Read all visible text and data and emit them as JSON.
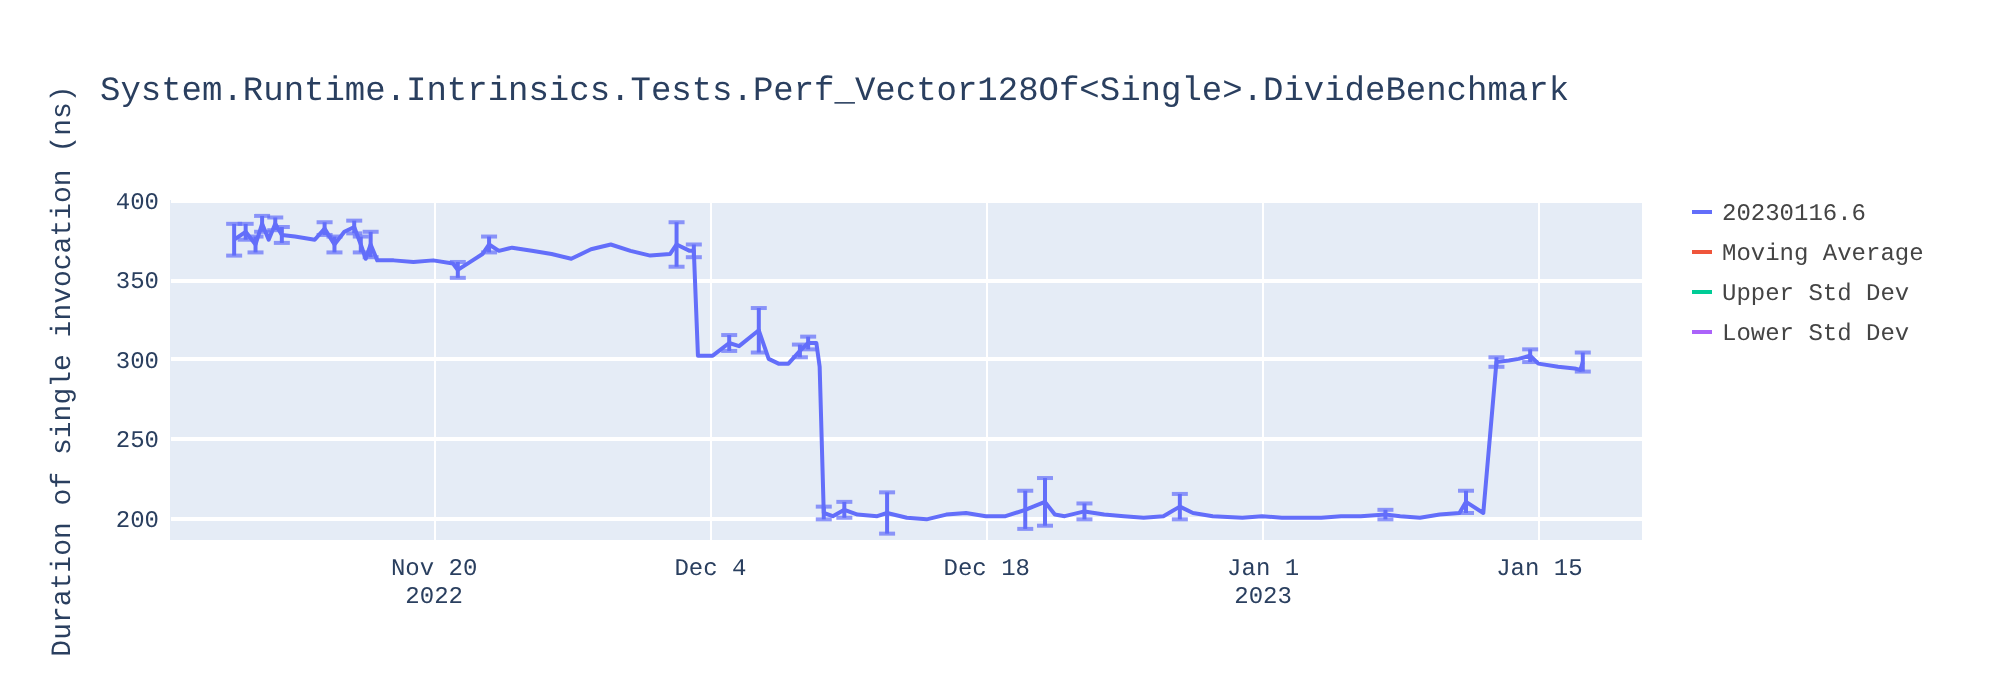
{
  "chart_data": {
    "type": "line",
    "title": "System.Runtime.Intrinsics.Tests.Perf_Vector128Of<Single>.DivideBenchmark",
    "ylabel": "Duration of single invocation (ns)",
    "x": [
      "2022-11-09T22:00",
      "2022-11-10T12:00",
      "2022-11-11T00:00",
      "2022-11-11T08:00",
      "2022-11-11T16:00",
      "2022-11-12T00:00",
      "2022-11-12T08:00",
      "2022-11-13T00:00",
      "2022-11-14T00:00",
      "2022-11-14T12:00",
      "2022-11-15T00:00",
      "2022-11-15T12:00",
      "2022-11-16T00:00",
      "2022-11-16T08:00",
      "2022-11-16T14:00",
      "2022-11-16T20:00",
      "2022-11-17T04:00",
      "2022-11-18T00:00",
      "2022-11-19T00:00",
      "2022-11-20T00:00",
      "2022-11-21T00:00",
      "2022-11-21T06:00",
      "2022-11-22T00:00",
      "2022-11-22T12:00",
      "2022-11-22T20:00",
      "2022-11-23T08:00",
      "2022-11-24T00:00",
      "2022-11-25T00:00",
      "2022-11-26T00:00",
      "2022-11-27T00:00",
      "2022-11-28T00:00",
      "2022-11-29T00:00",
      "2022-11-30T00:00",
      "2022-12-01T00:00",
      "2022-12-02T00:00",
      "2022-12-02T08:00",
      "2022-12-03T00:00",
      "2022-12-03T05:00",
      "2022-12-03T10:00",
      "2022-12-04T04:00",
      "2022-12-05T00:00",
      "2022-12-05T12:00",
      "2022-12-06T12:00",
      "2022-12-07T00:00",
      "2022-12-07T12:00",
      "2022-12-08T00:00",
      "2022-12-08T14:00",
      "2022-12-09T00:00",
      "2022-12-09T10:00",
      "2022-12-09T14:00",
      "2022-12-09T19:00",
      "2022-12-10T06:00",
      "2022-12-10T20:00",
      "2022-12-11T12:00",
      "2022-12-12T12:00",
      "2022-12-13T00:00",
      "2022-12-14T00:00",
      "2022-12-15T00:00",
      "2022-12-16T00:00",
      "2022-12-17T00:00",
      "2022-12-18T00:00",
      "2022-12-19T00:00",
      "2022-12-20T00:00",
      "2022-12-21T00:00",
      "2022-12-21T12:00",
      "2022-12-22T00:00",
      "2022-12-23T00:00",
      "2022-12-24T00:00",
      "2022-12-25T00:00",
      "2022-12-26T00:00",
      "2022-12-27T00:00",
      "2022-12-27T20:00",
      "2022-12-28T12:00",
      "2022-12-29T12:00",
      "2022-12-31T00:00",
      "2023-01-01T00:00",
      "2023-01-02T00:00",
      "2023-01-03T00:00",
      "2023-01-04T00:00",
      "2023-01-05T00:00",
      "2023-01-06T00:00",
      "2023-01-07T06:00",
      "2023-01-08T00:00",
      "2023-01-09T00:00",
      "2023-01-10T00:00",
      "2023-01-11T00:00",
      "2023-01-11T08:00",
      "2023-01-12T05:00",
      "2023-01-12T21:00",
      "2023-01-13T12:00",
      "2023-01-14T00:00",
      "2023-01-14T14:00",
      "2023-01-15T00:00",
      "2023-01-16T00:00",
      "2023-01-16T20:00",
      "2023-01-17T03:00",
      "2023-01-17T06:00"
    ],
    "series": [
      {
        "name": "20230116.6",
        "color": "#636efa",
        "values": [
          375,
          380,
          372,
          385,
          375,
          385,
          378,
          377,
          375,
          382,
          372,
          380,
          383,
          372,
          363,
          372,
          362,
          362,
          361,
          362,
          360,
          356,
          362,
          366,
          372,
          368,
          370,
          368,
          366,
          363,
          369,
          372,
          368,
          365,
          366,
          372,
          368,
          368,
          302,
          302,
          310,
          308,
          318,
          300,
          297,
          297,
          305,
          310,
          310,
          295,
          203,
          201,
          205,
          202,
          201,
          203,
          200,
          199,
          202,
          203,
          201,
          201,
          205,
          210,
          202,
          201,
          204,
          202,
          201,
          200,
          201,
          207,
          203,
          201,
          200,
          201,
          200,
          200,
          200,
          201,
          201,
          202,
          201,
          200,
          202,
          203,
          210,
          203,
          298,
          299,
          300,
          302,
          297,
          295,
          294,
          293,
          298
        ],
        "errors": [
          10,
          5,
          5,
          5,
          null,
          4,
          5,
          null,
          null,
          4,
          5,
          null,
          4,
          5,
          null,
          8,
          null,
          null,
          null,
          null,
          null,
          5,
          null,
          null,
          5,
          null,
          null,
          null,
          null,
          null,
          null,
          null,
          null,
          null,
          null,
          14,
          null,
          4,
          null,
          null,
          5,
          null,
          14,
          null,
          null,
          null,
          4,
          4,
          null,
          null,
          4,
          null,
          5,
          null,
          null,
          13,
          null,
          null,
          null,
          null,
          null,
          null,
          12,
          15,
          null,
          null,
          5,
          null,
          null,
          null,
          null,
          8,
          null,
          null,
          null,
          null,
          null,
          null,
          null,
          null,
          null,
          3,
          null,
          null,
          null,
          null,
          7,
          null,
          3,
          null,
          null,
          4,
          null,
          null,
          null,
          null,
          6
        ]
      },
      {
        "name": "Moving Average",
        "color": "#ef553b",
        "values": [
          null,
          null,
          null,
          null,
          null,
          null,
          null,
          null,
          null,
          null,
          null,
          null,
          null,
          null,
          null,
          null,
          null,
          null,
          null,
          null,
          null,
          null,
          null,
          null,
          null,
          null,
          null,
          null,
          null,
          null,
          null,
          null,
          null,
          null,
          null,
          null,
          null,
          null,
          null,
          null,
          null,
          null,
          null,
          null,
          null,
          null,
          null,
          null,
          null,
          null,
          null,
          null,
          null,
          null,
          null,
          null,
          null,
          null,
          null,
          null,
          null,
          null,
          null,
          null,
          null,
          null,
          null,
          null,
          null,
          null,
          null,
          null,
          null,
          null,
          null,
          null,
          null,
          null,
          null,
          null,
          null,
          null,
          null,
          null,
          null,
          null,
          null,
          null,
          null,
          null,
          null,
          null,
          null,
          null,
          null,
          null,
          null
        ]
      },
      {
        "name": "Upper Std Dev",
        "color": "#00cc96",
        "values": [
          null,
          null,
          null,
          null,
          null,
          null,
          null,
          null,
          null,
          null,
          null,
          null,
          null,
          null,
          null,
          null,
          null,
          null,
          null,
          null,
          null,
          null,
          null,
          null,
          null,
          null,
          null,
          null,
          null,
          null,
          null,
          null,
          null,
          null,
          null,
          null,
          null,
          null,
          null,
          null,
          null,
          null,
          null,
          null,
          null,
          null,
          null,
          null,
          null,
          null,
          null,
          null,
          null,
          null,
          null,
          null,
          null,
          null,
          null,
          null,
          null,
          null,
          null,
          null,
          null,
          null,
          null,
          null,
          null,
          null,
          null,
          null,
          null,
          null,
          null,
          null,
          null,
          null,
          null,
          null,
          null,
          null,
          null,
          null,
          null,
          null,
          null,
          null,
          null,
          null,
          null,
          null,
          null,
          null,
          null,
          null,
          null
        ]
      },
      {
        "name": "Lower Std Dev",
        "color": "#ab63fa",
        "values": [
          null,
          null,
          null,
          null,
          null,
          null,
          null,
          null,
          null,
          null,
          null,
          null,
          null,
          null,
          null,
          null,
          null,
          null,
          null,
          null,
          null,
          null,
          null,
          null,
          null,
          null,
          null,
          null,
          null,
          null,
          null,
          null,
          null,
          null,
          null,
          null,
          null,
          null,
          null,
          null,
          null,
          null,
          null,
          null,
          null,
          null,
          null,
          null,
          null,
          null,
          null,
          null,
          null,
          null,
          null,
          null,
          null,
          null,
          null,
          null,
          null,
          null,
          null,
          null,
          null,
          null,
          null,
          null,
          null,
          null,
          null,
          null,
          null,
          null,
          null,
          null,
          null,
          null,
          null,
          null,
          null,
          null,
          null,
          null,
          null,
          null,
          null,
          null,
          null,
          null,
          null,
          null,
          null,
          null,
          null,
          null,
          null
        ]
      }
    ],
    "xlim": [
      "2022-11-06T16:00",
      "2023-01-20T06:00"
    ],
    "xticks": [
      {
        "value": "2022-11-20",
        "label": "Nov 20\n2022"
      },
      {
        "value": "2022-12-04",
        "label": "Dec 4"
      },
      {
        "value": "2022-12-18",
        "label": "Dec 18"
      },
      {
        "value": "2023-01-01",
        "label": "Jan 1\n2023"
      },
      {
        "value": "2023-01-15",
        "label": "Jan 15"
      }
    ],
    "ylim": [
      186,
      400
    ],
    "yticks": [
      200,
      250,
      300,
      350,
      400
    ],
    "grid": true,
    "legend": "top right",
    "marker": "none",
    "line_style": "solid"
  }
}
